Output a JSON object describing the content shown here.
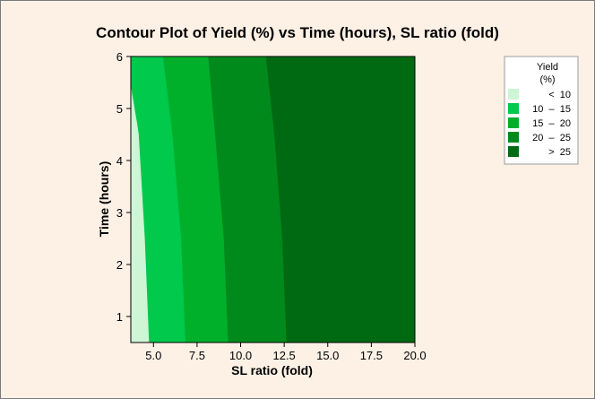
{
  "chart_data": {
    "type": "contour",
    "title": "Contour Plot of Yield (%) vs Time (hours), SL ratio (fold)",
    "xlabel": "SL ratio (fold)",
    "ylabel": "Time (hours)",
    "xlim": [
      3.7,
      20.0
    ],
    "ylim": [
      0.5,
      6.0
    ],
    "x_ticks": [
      5.0,
      7.5,
      10.0,
      12.5,
      15.0,
      17.5,
      20.0
    ],
    "x_tick_labels": [
      "5.0",
      "7.5",
      "10.0",
      "12.5",
      "15.0",
      "17.5",
      "20.0"
    ],
    "y_ticks": [
      1,
      2,
      3,
      4,
      5,
      6
    ],
    "y_tick_labels": [
      "1",
      "2",
      "3",
      "4",
      "5",
      "6"
    ],
    "contour_levels": [
      10,
      15,
      20,
      25
    ],
    "contour_boundaries": [
      {
        "level": 10,
        "points": [
          [
            4.75,
            0.5
          ],
          [
            4.5,
            2.5
          ],
          [
            4.15,
            4.5
          ],
          [
            3.7,
            5.4
          ]
        ]
      },
      {
        "level": 15,
        "points": [
          [
            6.85,
            0.5
          ],
          [
            6.6,
            2.5
          ],
          [
            6.1,
            4.5
          ],
          [
            5.55,
            6.0
          ]
        ]
      },
      {
        "level": 20,
        "points": [
          [
            9.3,
            0.5
          ],
          [
            9.05,
            2.5
          ],
          [
            8.55,
            4.5
          ],
          [
            8.15,
            6.0
          ]
        ]
      },
      {
        "level": 25,
        "points": [
          [
            12.65,
            0.5
          ],
          [
            12.4,
            2.5
          ],
          [
            11.95,
            4.5
          ],
          [
            11.45,
            6.0
          ]
        ]
      }
    ],
    "legend": {
      "title_line1": "Yield",
      "title_line2": "(%)",
      "placement": "right",
      "entries": [
        {
          "label": "<  10",
          "color": "#cdf5d6"
        },
        {
          "label": "10  –  15",
          "color": "#00c94c"
        },
        {
          "label": "15  –  20",
          "color": "#00b02a"
        },
        {
          "label": "20  –  25",
          "color": "#008a1c"
        },
        {
          "label": ">  25",
          "color": "#006a12"
        }
      ]
    }
  }
}
